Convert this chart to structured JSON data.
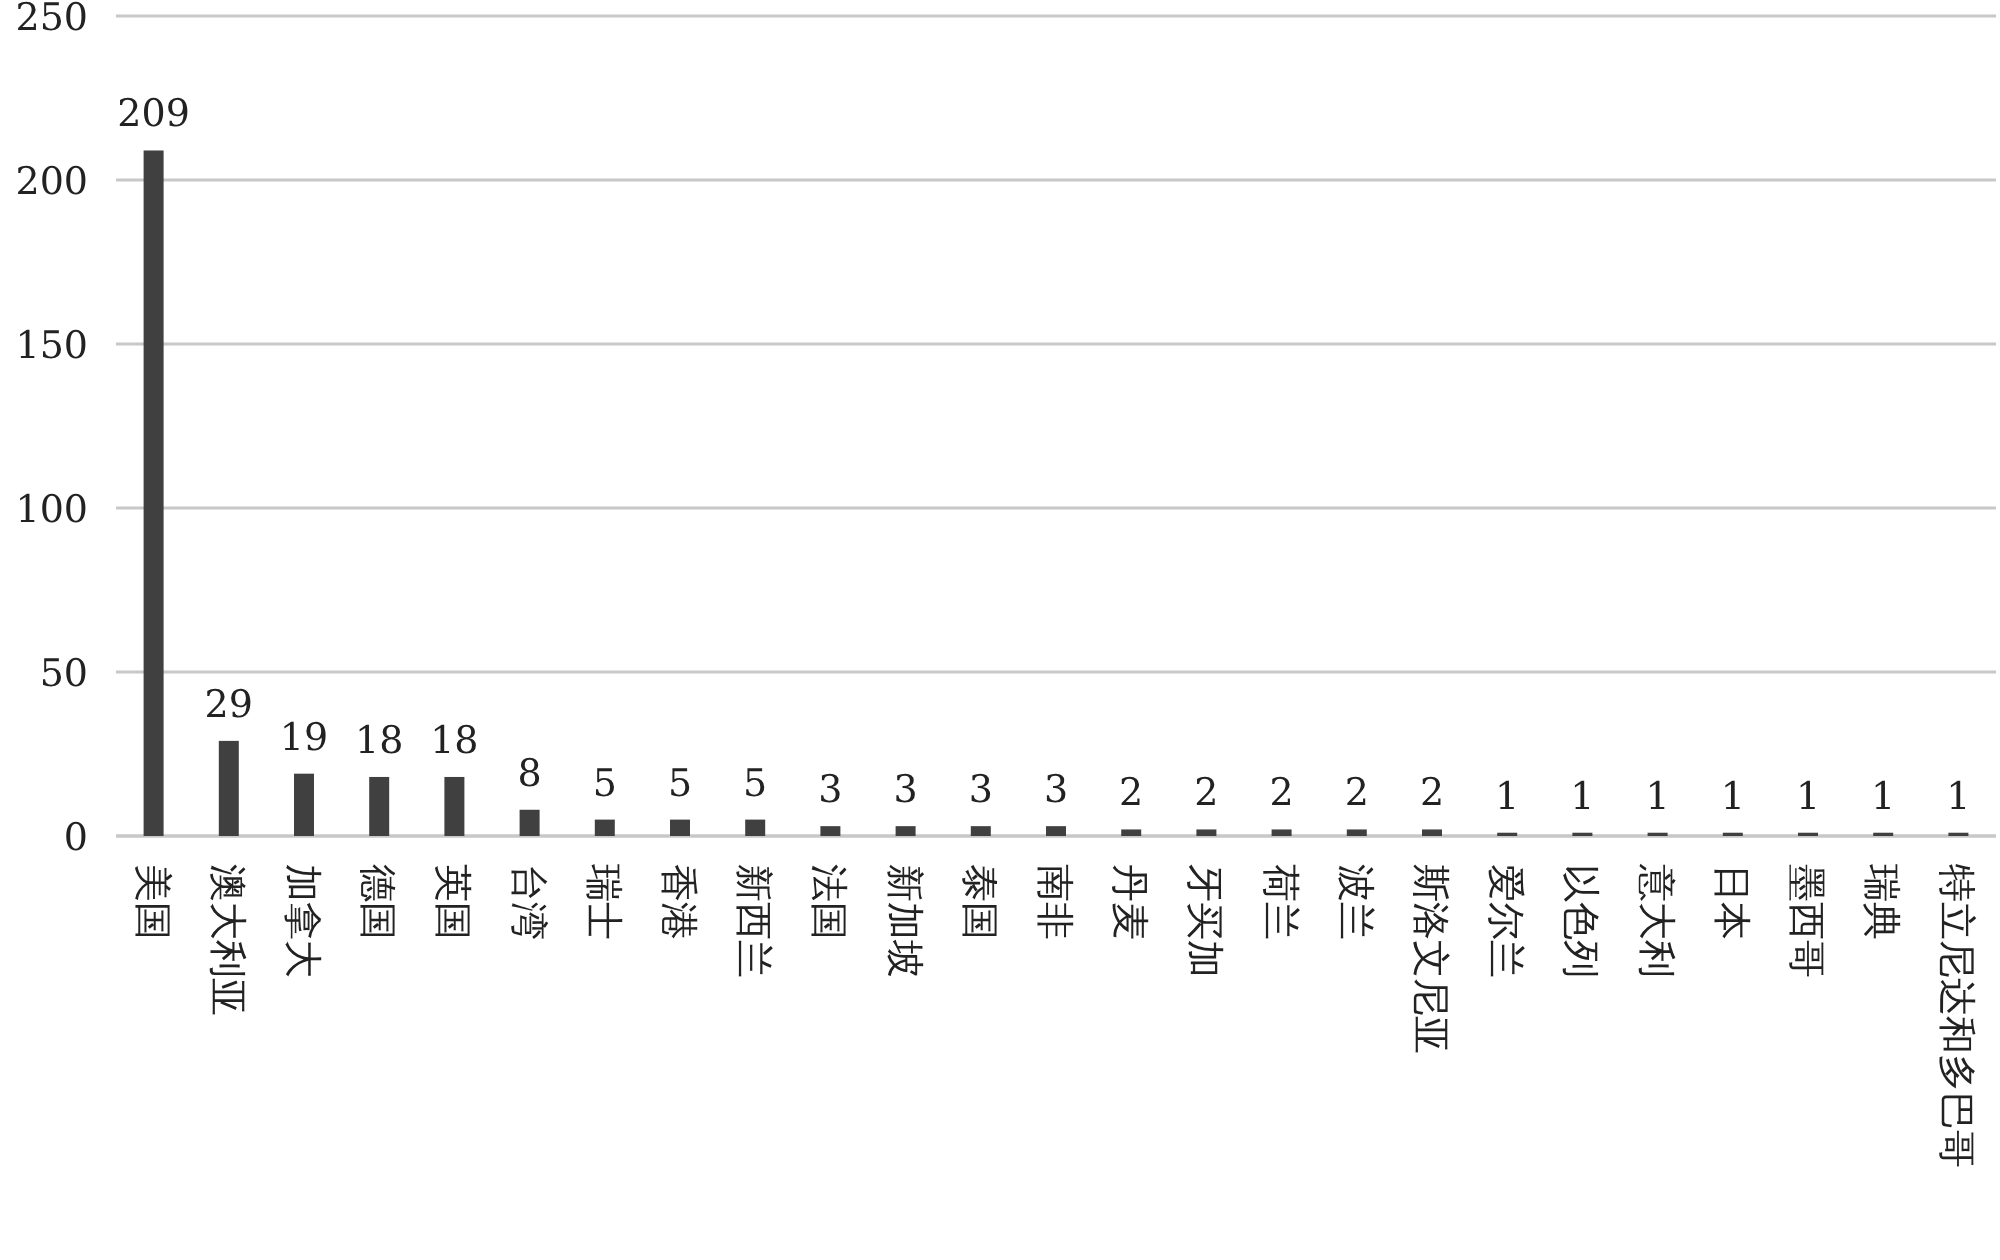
{
  "chart_data": {
    "type": "bar",
    "categories": [
      "美国",
      "澳大利亚",
      "加拿大",
      "德国",
      "英国",
      "台湾",
      "瑞士",
      "香港",
      "新西兰",
      "法国",
      "新加坡",
      "泰国",
      "南非",
      "丹麦",
      "牙买加",
      "荷兰",
      "波兰",
      "斯洛文尼亚",
      "爱尔兰",
      "以色列",
      "意大利",
      "日本",
      "墨西哥",
      "瑞典",
      "特立尼达和多巴哥"
    ],
    "values": [
      209,
      29,
      19,
      18,
      18,
      8,
      5,
      5,
      5,
      3,
      3,
      3,
      3,
      2,
      2,
      2,
      2,
      2,
      1,
      1,
      1,
      1,
      1,
      1,
      1
    ],
    "color": "#404040",
    "ylim": [
      0,
      250
    ],
    "yticks": [
      0,
      50,
      100,
      150,
      200,
      250
    ],
    "grid": "y",
    "data_labels": true
  }
}
